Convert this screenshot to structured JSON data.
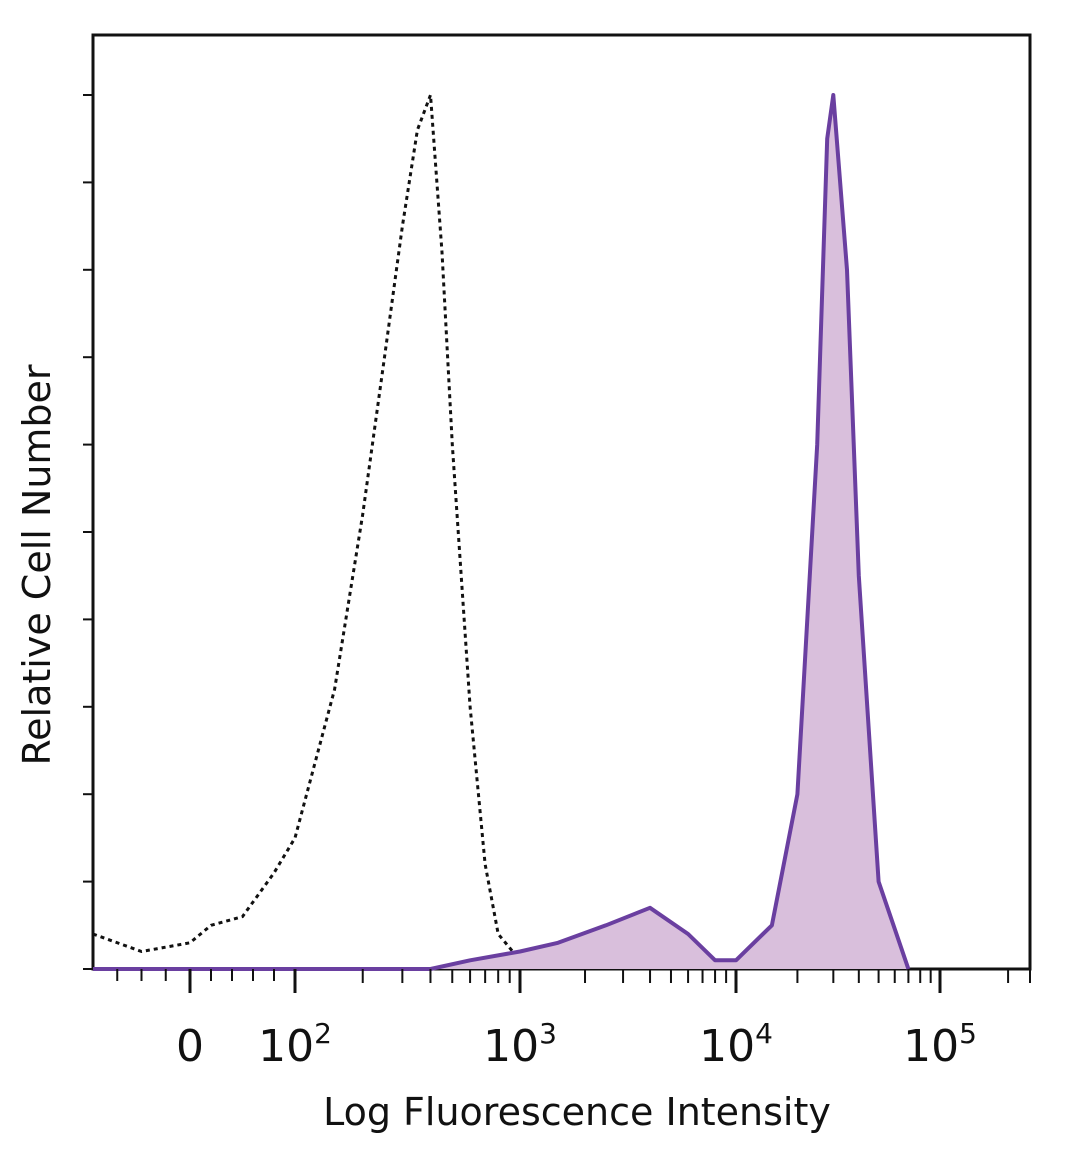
{
  "chart_data": {
    "type": "area",
    "xlabel": "Log Fluorescence Intensity",
    "ylabel": "Relative Cell Number",
    "x_scale": "biexponential",
    "xlim": [
      -40,
      250000
    ],
    "ylim": [
      0,
      100
    ],
    "grid": false,
    "x_ticks": [
      {
        "value": 0,
        "label": "0"
      },
      {
        "value": 100,
        "label": "10",
        "exp": "2"
      },
      {
        "value": 1000,
        "label": "10",
        "exp": "3"
      },
      {
        "value": 10000,
        "label": "10",
        "exp": "4"
      },
      {
        "value": 100000,
        "label": "10",
        "exp": "5"
      }
    ],
    "series": [
      {
        "style": "dotted-line",
        "color": "#111111",
        "x": [
          -40,
          -20,
          0,
          20,
          50,
          80,
          100,
          150,
          200,
          250,
          300,
          350,
          400,
          450,
          500,
          600,
          700,
          800,
          1000,
          1200
        ],
        "y": [
          4,
          2,
          3,
          5,
          6,
          11,
          15,
          32,
          52,
          70,
          85,
          96,
          100,
          82,
          60,
          30,
          12,
          4,
          1,
          0
        ]
      },
      {
        "style": "filled",
        "color": "#6a3fa0",
        "fill": "#d9bfdc",
        "x": [
          -40,
          0,
          100,
          400,
          600,
          1000,
          1500,
          2500,
          4000,
          6000,
          8000,
          10000,
          15000,
          20000,
          25000,
          28000,
          30000,
          35000,
          40000,
          50000,
          70000
        ],
        "y": [
          0,
          0,
          0,
          0,
          1,
          2,
          3,
          5,
          7,
          4,
          1,
          1,
          5,
          20,
          60,
          95,
          100,
          80,
          45,
          10,
          0
        ]
      }
    ]
  }
}
